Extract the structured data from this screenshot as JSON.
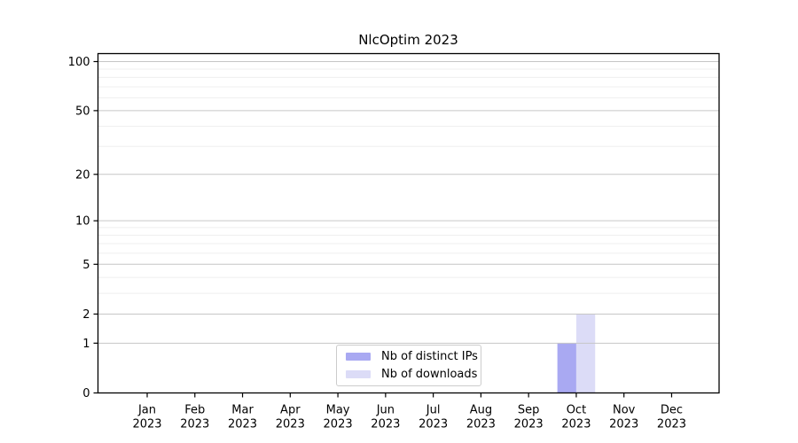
{
  "chart_data": {
    "type": "bar",
    "title": "NlcOptim 2023",
    "x_tick_months": [
      "Jan",
      "Feb",
      "Mar",
      "Apr",
      "May",
      "Jun",
      "Jul",
      "Aug",
      "Sep",
      "Oct",
      "Nov",
      "Dec"
    ],
    "x_tick_year": "2023",
    "series": [
      {
        "name": "Nb of distinct IPs",
        "color": "#a9a9f2",
        "values": [
          0,
          0,
          0,
          0,
          0,
          0,
          0,
          0,
          0,
          1,
          0,
          0
        ]
      },
      {
        "name": "Nb of downloads",
        "color": "#dcdcf7",
        "values": [
          0,
          0,
          0,
          0,
          0,
          0,
          0,
          0,
          0,
          2,
          0,
          0
        ]
      }
    ],
    "y_scale": "log1p",
    "y_major_ticks": [
      0,
      1,
      2,
      5,
      10,
      20,
      50,
      100
    ],
    "y_minor_gridlines": [
      3,
      4,
      6,
      7,
      8,
      9,
      30,
      40,
      60,
      70,
      80,
      90
    ],
    "ylim": [
      0,
      112
    ],
    "grid": true,
    "legend_position": "lower center",
    "colors": {
      "major_grid": "#c6c6c6",
      "minor_grid": "#efefef",
      "axis": "#000000",
      "background": "#ffffff"
    }
  }
}
